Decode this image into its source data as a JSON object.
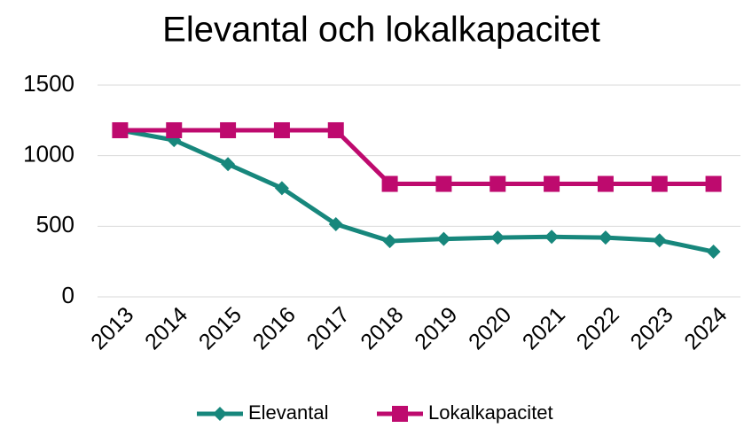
{
  "chart_data": {
    "type": "line",
    "title": "Elevantal och lokalkapacitet",
    "categories": [
      "2013",
      "2014",
      "2015",
      "2016",
      "2017",
      "2018",
      "2019",
      "2020",
      "2021",
      "2022",
      "2023",
      "2024"
    ],
    "series": [
      {
        "name": "Elevantal",
        "color": "#17877c",
        "marker": "diamond",
        "values": [
          1180,
          1110,
          940,
          770,
          515,
          395,
          410,
          420,
          425,
          420,
          400,
          320
        ]
      },
      {
        "name": "Lokalkapacitet",
        "color": "#be0a6e",
        "marker": "square",
        "values": [
          1180,
          1180,
          1180,
          1180,
          1180,
          800,
          800,
          800,
          800,
          800,
          800,
          800
        ]
      }
    ],
    "ylim": [
      0,
      1500
    ],
    "yticks": [
      0,
      500,
      1000,
      1500
    ],
    "grid": true,
    "legend": "bottom"
  }
}
